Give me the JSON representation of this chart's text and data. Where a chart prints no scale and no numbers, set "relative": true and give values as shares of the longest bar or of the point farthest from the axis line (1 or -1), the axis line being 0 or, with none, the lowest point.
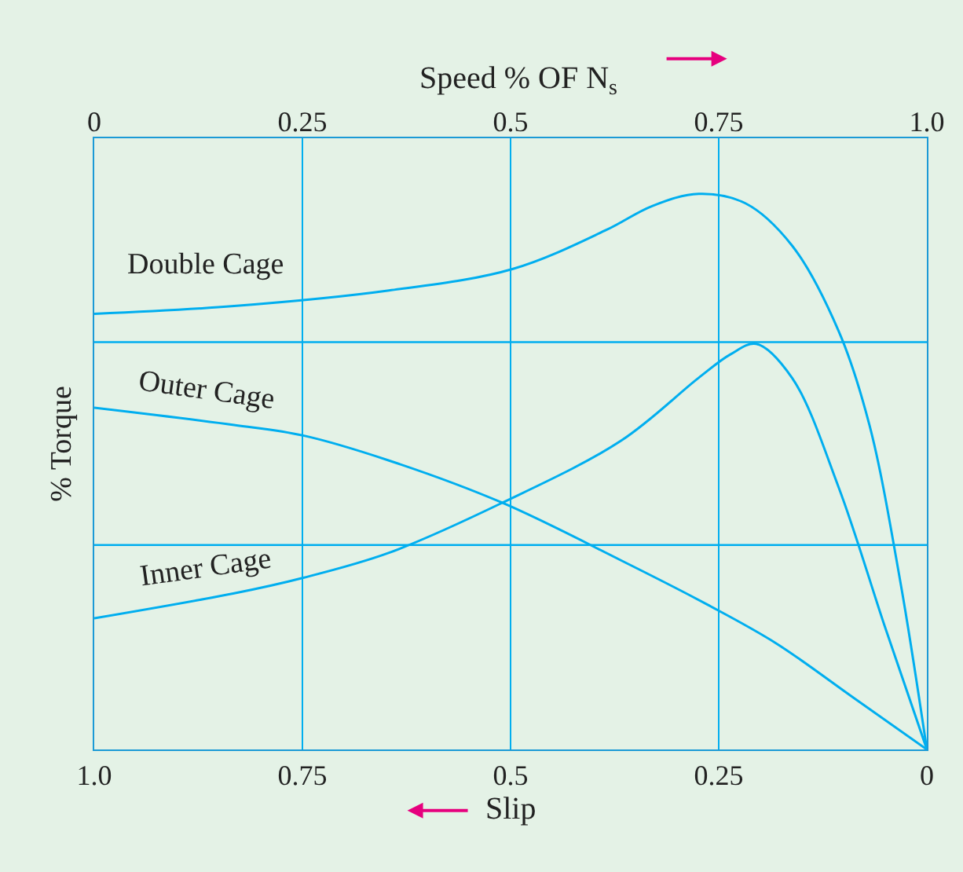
{
  "chart_data": {
    "type": "line",
    "relative": true,
    "xlabel": "Slip",
    "x2label": "Speed % OF N$_{s}$",
    "ylabel": "% Torque",
    "xlim": [
      1.0,
      0
    ],
    "xticks": [
      {
        "value": 1.0,
        "label": "1.0"
      },
      0.75,
      0.5,
      0.25,
      0
    ],
    "x2lim": [
      0,
      1.0
    ],
    "x2ticks": [
      0,
      0.25,
      0.5,
      0.75,
      {
        "value": 1.0,
        "label": "1.0"
      }
    ],
    "grid": "x",
    "legend": false,
    "marker": "none",
    "line_style": "solid",
    "ref_lines": [
      {
        "axis": "y",
        "value": 0.733,
        "color": "#00aeef"
      },
      {
        "axis": "y",
        "value": 0.368,
        "color": "#00aeef"
      }
    ],
    "series": [
      {
        "name": "Double Cage",
        "color": "#00aeef",
        "x": [
          1,
          0.832,
          0.646,
          0.497,
          0.385,
          0.33,
          0.274,
          0.218,
          0.162,
          0.106,
          0.069,
          0.032,
          0
        ],
        "values": [
          0.784,
          0.798,
          0.826,
          0.865,
          0.935,
          0.978,
          1.0,
          0.983,
          0.907,
          0.753,
          0.584,
          0.303,
          0
        ]
      },
      {
        "name": "Outer Cage",
        "color": "#00aeef",
        "x": [
          1,
          0.832,
          0.749,
          0.646,
          0.51,
          0.367,
          0.264,
          0.181,
          0.088,
          0
        ],
        "values": [
          0.615,
          0.584,
          0.565,
          0.52,
          0.444,
          0.34,
          0.261,
          0.191,
          0.093,
          0
        ]
      },
      {
        "name": "Inner Cage",
        "color": "#00aeef",
        "x": [
          1,
          0.832,
          0.749,
          0.646,
          0.51,
          0.367,
          0.274,
          0.236,
          0.205,
          0.162,
          0.106,
          0.05,
          0
        ],
        "values": [
          0.236,
          0.281,
          0.309,
          0.354,
          0.444,
          0.556,
          0.669,
          0.711,
          0.73,
          0.669,
          0.472,
          0.219,
          0
        ]
      }
    ]
  }
}
